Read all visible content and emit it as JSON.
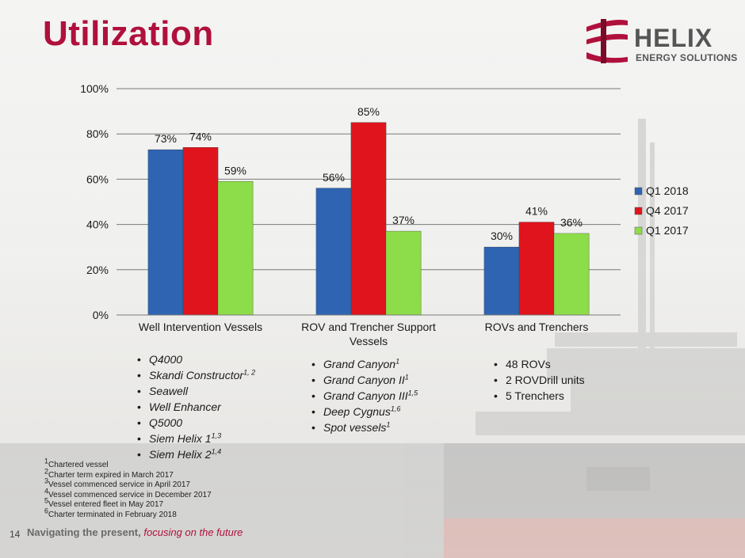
{
  "slide": {
    "title": "Utilization",
    "logo_text": "HELIX",
    "logo_subtext": "ENERGY SOLUTIONS",
    "page_number": "14",
    "tagline_main": "Navigating the present,",
    "tagline_accent": "focusing on the future"
  },
  "chart_data": {
    "type": "bar",
    "categories": [
      "Well Intervention Vessels",
      "ROV and Trencher Support Vessels",
      "ROVs and Trenchers"
    ],
    "category_lines": [
      [
        "Well Intervention Vessels"
      ],
      [
        "ROV and Trencher Support",
        "Vessels"
      ],
      [
        "ROVs and Trenchers"
      ]
    ],
    "series": [
      {
        "name": "Q1 2018",
        "values": [
          73,
          56,
          30
        ],
        "labels": [
          "73%",
          "56%",
          "30%"
        ],
        "color": "#2f64b2"
      },
      {
        "name": "Q4 2017",
        "values": [
          74,
          85,
          41
        ],
        "labels": [
          "74%",
          "85%",
          "41%"
        ],
        "color": "#e0141c"
      },
      {
        "name": "Q1 2017",
        "values": [
          59,
          37,
          36
        ],
        "labels": [
          "59%",
          "37%",
          "36%"
        ],
        "color": "#8ddc4a"
      }
    ],
    "ylim": [
      0,
      100
    ],
    "yticks": [
      0,
      20,
      40,
      60,
      80,
      100
    ],
    "ytick_labels": [
      "0%",
      "20%",
      "40%",
      "60%",
      "80%",
      "100%"
    ],
    "grid": true,
    "legend_position": "right"
  },
  "bullets": {
    "well_intervention": [
      {
        "text": "Q4000",
        "sup": ""
      },
      {
        "text": "Skandi Constructor",
        "sup": "1, 2"
      },
      {
        "text": "Seawell",
        "sup": ""
      },
      {
        "text": "Well Enhancer",
        "sup": ""
      },
      {
        "text": "Q5000",
        "sup": ""
      },
      {
        "text": "Siem Helix 1",
        "sup": "1,3"
      },
      {
        "text": "Siem Helix 2",
        "sup": "1,4"
      }
    ],
    "rov_support": [
      {
        "text": "Grand Canyon",
        "sup": "1"
      },
      {
        "text": "Grand Canyon II",
        "sup": "1"
      },
      {
        "text": "Grand Canyon III",
        "sup": "1,5"
      },
      {
        "text": "Deep Cygnus",
        "sup": "1,6"
      },
      {
        "text": "Spot vessels",
        "sup": "1"
      }
    ],
    "rovs": [
      {
        "text": "48 ROVs"
      },
      {
        "text": "2 ROVDrill units"
      },
      {
        "text": "5 Trenchers"
      }
    ]
  },
  "footnotes": [
    {
      "num": "1",
      "text": "Chartered vessel"
    },
    {
      "num": "2",
      "text": "Charter term expired in March 2017"
    },
    {
      "num": "3",
      "text": "Vessel commenced service in April 2017"
    },
    {
      "num": "4",
      "text": "Vessel commenced service in December 2017"
    },
    {
      "num": "5",
      "text": "Vessel entered fleet in May 2017"
    },
    {
      "num": "6",
      "text": "Charter terminated in February 2018"
    }
  ]
}
